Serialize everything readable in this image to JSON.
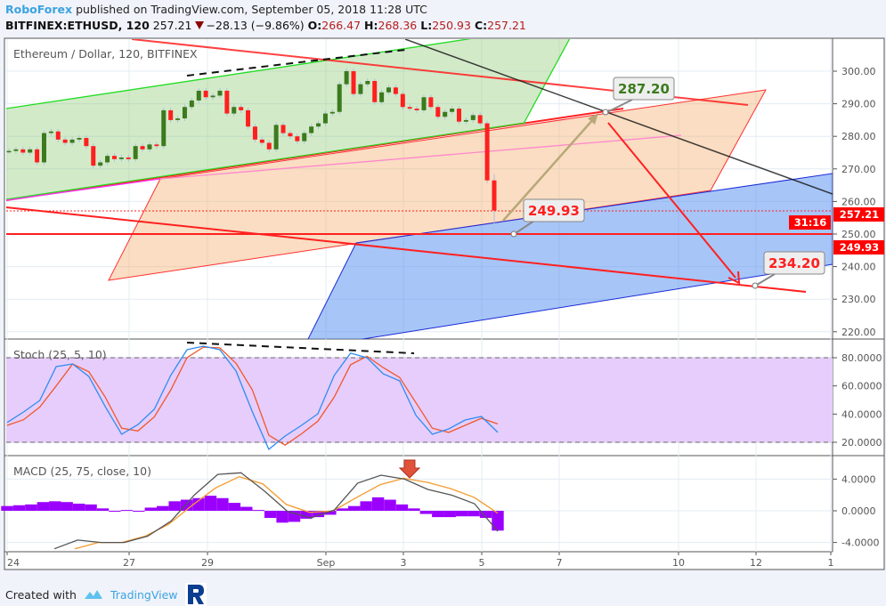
{
  "header": {
    "publisher": "RoboForex",
    "published_text": "published on TradingView.com, September 05, 2018 11:28 UTC",
    "symbol": "BITFINEX:ETHUSD, 120",
    "last": "257.21",
    "change": "−28.13 (−9.86%)",
    "o_label": "O:",
    "o": "266.47",
    "h_label": "H:",
    "h": "268.36",
    "l_label": "L:",
    "l": "250.93",
    "c_label": "C:",
    "c": "257.21"
  },
  "colors": {
    "up": "#3c7a1e",
    "down": "#ff1f1f",
    "stoch_k": "#2f8cf0",
    "stoch_d": "#f0582c",
    "macd": "#555555",
    "signal": "#f39a2c",
    "hist": "#9b00ff"
  },
  "chart_data": [
    {
      "type": "candlestick",
      "title": "Ethereum / Dollar, 120, BITFINEX",
      "closes": [
        275.5,
        276,
        275,
        276,
        272,
        281,
        281.5,
        279,
        278,
        279,
        279.5,
        277,
        271,
        272,
        274,
        273,
        273.5,
        273,
        277,
        276,
        277.5,
        277,
        288,
        285,
        285.5,
        289,
        291,
        294,
        292,
        292.5,
        294,
        287,
        289,
        288,
        283,
        279,
        278,
        276,
        283.5,
        281,
        280,
        278.5,
        281,
        283,
        284,
        287,
        287.5,
        296,
        300,
        293,
        296,
        297,
        290.5,
        293.5,
        295,
        293,
        289,
        288.5,
        288,
        292,
        289,
        286,
        287.5,
        288.5,
        284.5,
        285,
        286.5,
        284,
        266.47
      ],
      "last_candle": {
        "open": 266.47,
        "high": 268.36,
        "low": 250.93,
        "close": 257.21
      },
      "ylim": [
        217,
        307
      ],
      "y_ticks": [
        "300.00",
        "290.00",
        "280.00",
        "270.00",
        "260.00",
        "250.00",
        "240.00",
        "230.00",
        "220.00"
      ],
      "price_tags": {
        "last": "257.21",
        "countdown": "31:16",
        "level": "249.93"
      },
      "x_ticks": [
        "24",
        "27",
        "29",
        "Sep",
        "3",
        "5",
        "7",
        "10",
        "12",
        "1"
      ],
      "annotations": {
        "target_up": "287.20",
        "support": "249.93",
        "target_down": "234.20"
      }
    },
    {
      "type": "line",
      "title": "Stoch (25, 5, 10)",
      "series": [
        {
          "values": [
            34,
            41.5,
            49.7,
            73.7,
            75.6,
            66.7,
            45.3,
            25.7,
            32.6,
            43.4,
            67.4,
            85.7,
            88.2,
            85.7,
            70.5,
            41.5,
            15,
            24.4,
            32,
            40.2,
            67.4,
            83.2,
            80,
            68.6,
            63.6,
            39,
            25.7,
            29.5,
            35.8,
            38.3,
            27
          ]
        },
        {
          "values": [
            32,
            36,
            45,
            60,
            75.5,
            70,
            52,
            30,
            28,
            38,
            57,
            80,
            87.5,
            87,
            76,
            57,
            25,
            18,
            26,
            35,
            52,
            75,
            81,
            73,
            66,
            48,
            30,
            27,
            32,
            37,
            33
          ]
        }
      ],
      "bands": [
        20,
        80
      ],
      "y_ticks": [
        "80.0000",
        "60.0000",
        "40.0000",
        "20.0000"
      ]
    },
    {
      "type": "line",
      "title": "MACD (25, 75, close, 10)",
      "macd": [
        -4.8,
        -3.7,
        -4,
        -4,
        -3.2,
        -1.3,
        2.0,
        4.6,
        4.8,
        2.5,
        -0.1,
        -0.9,
        0.1,
        3.5,
        4.5,
        4.0,
        2.7,
        2.0,
        0.9,
        -2.6
      ],
      "signal": [
        -4.8,
        -4,
        -4,
        -3.2,
        -1.7,
        0.7,
        2.9,
        4.3,
        3.4,
        0.8,
        -0.2,
        0,
        1.7,
        3.3,
        4.1,
        3.6,
        2.8,
        1.7,
        -0.3
      ],
      "histogram": [
        0.6,
        0.7,
        0.8,
        1.1,
        1.2,
        1.1,
        0.9,
        0.8,
        0.3,
        0,
        0.1,
        0,
        0.4,
        0.6,
        1.2,
        1.4,
        1.6,
        1.9,
        1.6,
        1.0,
        0.5,
        0.1,
        -0.9,
        -1.5,
        -1.4,
        -1.0,
        -0.8,
        -0.5,
        0.3,
        0.6,
        1.2,
        1.7,
        1.4,
        0.8,
        0.3,
        -0.4,
        -0.8,
        -0.8,
        -0.7,
        -0.7,
        -0.9,
        -2.5
      ],
      "y_ticks": [
        "4.0000",
        "0.0000",
        "-4.0000"
      ]
    }
  ],
  "footer": {
    "created_with": "Created with",
    "tradingview": "TradingView"
  }
}
